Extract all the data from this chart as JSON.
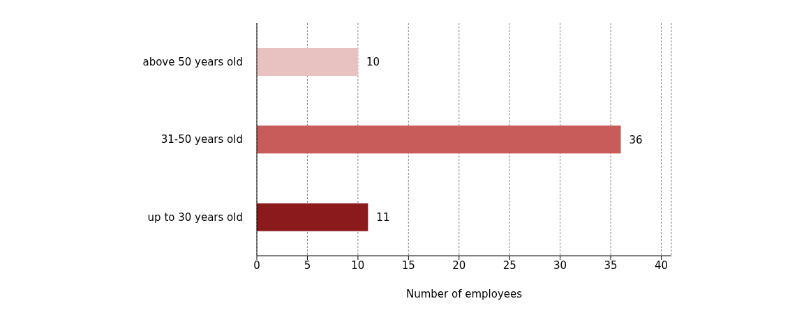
{
  "chart_data": {
    "type": "bar",
    "orientation": "horizontal",
    "xlabel": "Number of employees",
    "categories": [
      "above 50 years old",
      "31-50 years old",
      "up to 30 years old"
    ],
    "values": [
      10,
      36,
      11
    ],
    "colors": [
      "#e8c1c1",
      "#c85c5a",
      "#8b1a1c"
    ],
    "xlim": [
      0,
      41
    ],
    "xticks": [
      0,
      5,
      10,
      15,
      20,
      25,
      30,
      35,
      40
    ],
    "grid": "x",
    "data_labels": true
  }
}
